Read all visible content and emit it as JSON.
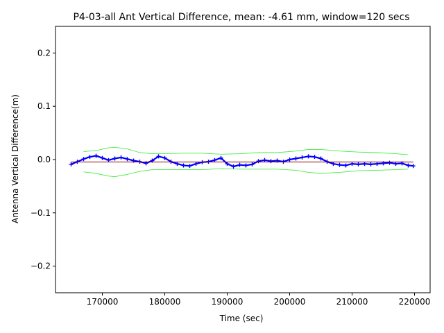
{
  "chart_data": {
    "type": "line",
    "title": "P4-03-all Ant Vertical Difference, mean: -4.61 mm, window=120 secs",
    "xlabel": "Time (sec)",
    "ylabel": "Antenna Vertical Difference(m)",
    "xlim": [
      162500,
      222500
    ],
    "ylim": [
      -0.25,
      0.25
    ],
    "x_ticks": [
      170000,
      180000,
      190000,
      200000,
      210000,
      220000
    ],
    "x_tick_labels": [
      "170000",
      "180000",
      "190000",
      "200000",
      "210000",
      "220000"
    ],
    "y_ticks": [
      -0.2,
      -0.1,
      0.0,
      0.1,
      0.2
    ],
    "y_tick_labels": [
      "−0.2",
      "−0.1",
      "0.0",
      "0.1",
      "0.2"
    ],
    "grid": false,
    "mean_m": -0.00461,
    "series": [
      {
        "color": "#0000ff",
        "marker": "+",
        "x": [
          165000,
          166000,
          167000,
          168000,
          169000,
          170000,
          171000,
          172000,
          173000,
          174000,
          175000,
          176000,
          177000,
          178000,
          179000,
          180000,
          181000,
          182000,
          183000,
          184000,
          185000,
          186000,
          187000,
          188000,
          189000,
          190000,
          191000,
          192000,
          193000,
          194000,
          195000,
          196000,
          197000,
          198000,
          199000,
          200000,
          201000,
          202000,
          203000,
          204000,
          205000,
          206000,
          207000,
          208000,
          209000,
          210000,
          211000,
          212000,
          213000,
          214000,
          215000,
          216000,
          217000,
          218000,
          219000,
          219800
        ],
        "y": [
          -0.009,
          -0.004,
          0.001,
          0.005,
          0.007,
          0.003,
          -0.001,
          0.002,
          0.004,
          0.001,
          -0.002,
          -0.004,
          -0.007,
          -0.002,
          0.006,
          0.003,
          -0.004,
          -0.008,
          -0.011,
          -0.012,
          -0.008,
          -0.005,
          -0.004,
          -0.001,
          0.003,
          -0.008,
          -0.013,
          -0.01,
          -0.011,
          -0.009,
          -0.003,
          -0.001,
          -0.003,
          -0.002,
          -0.004,
          0.0,
          0.002,
          0.004,
          0.006,
          0.005,
          0.002,
          -0.004,
          -0.008,
          -0.01,
          -0.011,
          -0.008,
          -0.009,
          -0.008,
          -0.009,
          -0.008,
          -0.007,
          -0.006,
          -0.008,
          -0.007,
          -0.011,
          -0.012
        ]
      },
      {
        "color": "#44ee44",
        "x": [
          167000,
          169000,
          171000,
          172000,
          174000,
          176000,
          178000,
          180000,
          183000,
          186000,
          189000,
          192000,
          195000,
          198000,
          201000,
          203000,
          205000,
          208000,
          211000,
          214000,
          217000,
          219000
        ],
        "y": [
          0.015,
          0.017,
          0.022,
          0.023,
          0.02,
          0.013,
          0.011,
          0.011,
          0.012,
          0.012,
          0.01,
          0.011,
          0.013,
          0.013,
          0.016,
          0.019,
          0.019,
          0.016,
          0.014,
          0.013,
          0.011,
          0.009
        ]
      },
      {
        "color": "#44ee44",
        "x": [
          167000,
          169000,
          171000,
          172000,
          174000,
          176000,
          178000,
          180000,
          183000,
          186000,
          189000,
          192000,
          195000,
          198000,
          201000,
          203000,
          205000,
          208000,
          211000,
          214000,
          217000,
          219000
        ],
        "y": [
          -0.023,
          -0.026,
          -0.031,
          -0.032,
          -0.028,
          -0.022,
          -0.019,
          -0.019,
          -0.019,
          -0.019,
          -0.017,
          -0.018,
          -0.018,
          -0.018,
          -0.02,
          -0.024,
          -0.026,
          -0.024,
          -0.021,
          -0.02,
          -0.019,
          -0.018
        ]
      },
      {
        "color": "#8b0000",
        "x": [
          165000,
          219800
        ],
        "y": [
          -0.00461,
          -0.00461
        ]
      }
    ]
  }
}
